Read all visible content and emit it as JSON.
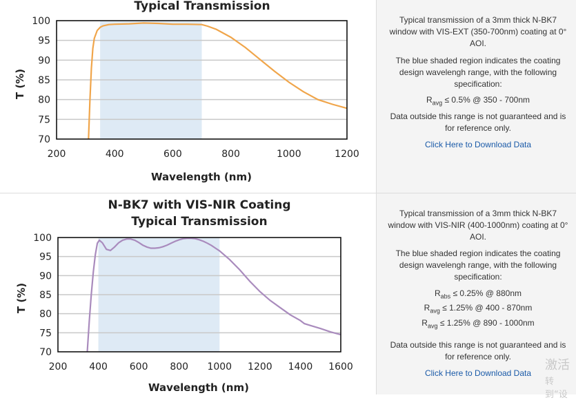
{
  "charts": [
    {
      "title_line1": "",
      "title_line2": "Typical Transmission",
      "ylabel": "T (%)",
      "xlabel": "Wavelength (nm)",
      "xticks": [
        "200",
        "400",
        "600",
        "800",
        "1000",
        "1200"
      ],
      "yticks": [
        "70",
        "75",
        "80",
        "85",
        "90",
        "95",
        "100"
      ],
      "description": "Typical transmission of a 3mm thick N-BK7 window with VIS-EXT (350-700nm) coating at 0° AOI.",
      "shade_note": "The blue shaded region indicates the coating design wavelengh range, with the following specification:",
      "specs": [
        {
          "R": "R",
          "sub": "avg",
          "text": "≤ 0.5% @ 350 - 700nm"
        }
      ],
      "disclaimer": "Data outside this range is not guaranteed and is for reference only.",
      "link": "Click Here to Download Data"
    },
    {
      "title_line1": "N-BK7 with VIS-NIR Coating",
      "title_line2": "Typical Transmission",
      "ylabel": "T (%)",
      "xlabel": "Wavelength (nm)",
      "xticks": [
        "200",
        "400",
        "600",
        "800",
        "1000",
        "1200",
        "1400",
        "1600"
      ],
      "yticks": [
        "70",
        "75",
        "80",
        "85",
        "90",
        "95",
        "100"
      ],
      "description": "Typical transmission of a 3mm thick N-BK7 window with VIS-NIR (400-1000nm) coating at 0° AOI.",
      "shade_note": "The blue shaded region indicates the coating design wavelengh range, with the following specification:",
      "specs": [
        {
          "R": "R",
          "sub": "abs",
          "text": "≤ 0.25% @ 880nm"
        },
        {
          "R": "R",
          "sub": "avg",
          "text": "≤ 1.25% @ 400 - 870nm"
        },
        {
          "R": "R",
          "sub": "avg",
          "text": "≤ 1.25% @ 890 - 1000nm"
        }
      ],
      "disclaimer": "Data outside this range is not guaranteed and is for reference only.",
      "link": "Click Here to Download Data"
    }
  ],
  "watermark": {
    "line1": "激活",
    "line2": "转到“设"
  },
  "colors": {
    "shade": "#deeaf5",
    "grid": "#c8c8c8",
    "line1": "#f0a54a",
    "line2": "#a98bbd"
  },
  "chart_data": [
    {
      "type": "line",
      "title": "Typical Transmission",
      "xlabel": "Wavelength (nm)",
      "ylabel": "T (%)",
      "xlim": [
        200,
        1200
      ],
      "ylim": [
        70,
        100
      ],
      "grid": true,
      "shaded_range": [
        350,
        700
      ],
      "series": [
        {
          "x": [
            310,
            315,
            320,
            325,
            330,
            340,
            350,
            360,
            380,
            400,
            450,
            500,
            550,
            600,
            650,
            700,
            720,
            750,
            800,
            850,
            900,
            950,
            1000,
            1050,
            1100,
            1150,
            1200
          ],
          "y": [
            70,
            80,
            88,
            93,
            95.5,
            97.5,
            98.3,
            98.7,
            99.0,
            99.1,
            99.2,
            99.4,
            99.3,
            99.1,
            99.1,
            99.0,
            98.6,
            97.8,
            95.8,
            93.2,
            90.2,
            87.2,
            84.4,
            82.0,
            80.0,
            78.8,
            77.8
          ]
        }
      ]
    },
    {
      "type": "line",
      "title": "N-BK7 with VIS-NIR Coating Typical Transmission",
      "xlabel": "Wavelength (nm)",
      "ylabel": "T (%)",
      "xlim": [
        200,
        1600
      ],
      "ylim": [
        70,
        100
      ],
      "grid": true,
      "shaded_range": [
        400,
        1000
      ],
      "series": [
        {
          "x": [
            345,
            355,
            365,
            375,
            385,
            395,
            405,
            420,
            440,
            460,
            480,
            500,
            520,
            540,
            560,
            580,
            600,
            620,
            640,
            660,
            680,
            700,
            720,
            740,
            760,
            780,
            800,
            820,
            840,
            860,
            880,
            900,
            920,
            940,
            960,
            980,
            1000,
            1050,
            1100,
            1150,
            1200,
            1250,
            1300,
            1350,
            1400,
            1420,
            1450,
            1500,
            1550,
            1600
          ],
          "y": [
            70,
            78,
            85,
            91,
            95.5,
            98.5,
            99.3,
            98.6,
            96.9,
            96.6,
            97.5,
            98.6,
            99.3,
            99.6,
            99.6,
            99.3,
            98.7,
            98.0,
            97.5,
            97.2,
            97.2,
            97.3,
            97.6,
            98.0,
            98.5,
            99.0,
            99.4,
            99.7,
            99.8,
            99.8,
            99.7,
            99.4,
            99.0,
            98.5,
            97.9,
            97.2,
            96.5,
            94.2,
            91.5,
            88.5,
            85.8,
            83.5,
            81.6,
            79.7,
            78.2,
            77.4,
            76.9,
            76.1,
            75.2,
            74.5
          ]
        }
      ]
    }
  ]
}
